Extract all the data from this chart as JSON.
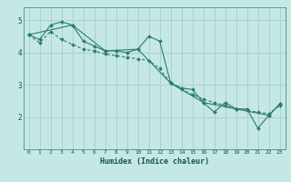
{
  "line1_x": [
    0,
    1,
    2,
    3,
    4,
    5,
    6,
    7,
    8,
    9,
    10,
    11,
    12,
    13,
    14,
    15,
    16,
    17,
    18,
    19,
    20,
    21,
    22,
    23
  ],
  "line1_y": [
    4.55,
    4.4,
    4.85,
    4.95,
    4.85,
    4.35,
    4.2,
    4.05,
    4.05,
    4.0,
    4.1,
    4.5,
    4.35,
    3.05,
    2.9,
    2.85,
    2.45,
    2.15,
    2.45,
    2.25,
    2.25,
    1.65,
    2.05,
    2.4
  ],
  "line2_x": [
    0,
    1,
    2,
    3,
    4,
    5,
    6,
    7,
    8,
    9,
    10,
    11,
    12,
    13,
    14,
    15,
    16,
    17,
    18,
    19,
    20,
    21,
    22,
    23
  ],
  "line2_y": [
    4.55,
    4.3,
    4.65,
    4.4,
    4.25,
    4.1,
    4.05,
    3.95,
    3.9,
    3.85,
    3.8,
    3.75,
    3.5,
    3.05,
    2.85,
    2.7,
    2.55,
    2.45,
    2.35,
    2.25,
    2.2,
    2.15,
    2.1,
    2.35
  ],
  "line3_x": [
    0,
    4,
    7,
    10,
    13,
    16,
    19,
    22,
    23
  ],
  "line3_y": [
    4.55,
    4.85,
    4.05,
    4.1,
    3.05,
    2.45,
    2.25,
    2.05,
    2.4
  ],
  "color": "#2a7d6e",
  "bg_color": "#c5e8e5",
  "grid_color": "#a8ceca",
  "xlabel": "Humidex (Indice chaleur)",
  "xlim": [
    -0.5,
    23.5
  ],
  "ylim": [
    1.0,
    5.4
  ],
  "yticks": [
    2,
    3,
    4,
    5
  ],
  "xticks": [
    0,
    1,
    2,
    3,
    4,
    5,
    6,
    7,
    8,
    9,
    10,
    11,
    12,
    13,
    14,
    15,
    16,
    17,
    18,
    19,
    20,
    21,
    22,
    23
  ]
}
